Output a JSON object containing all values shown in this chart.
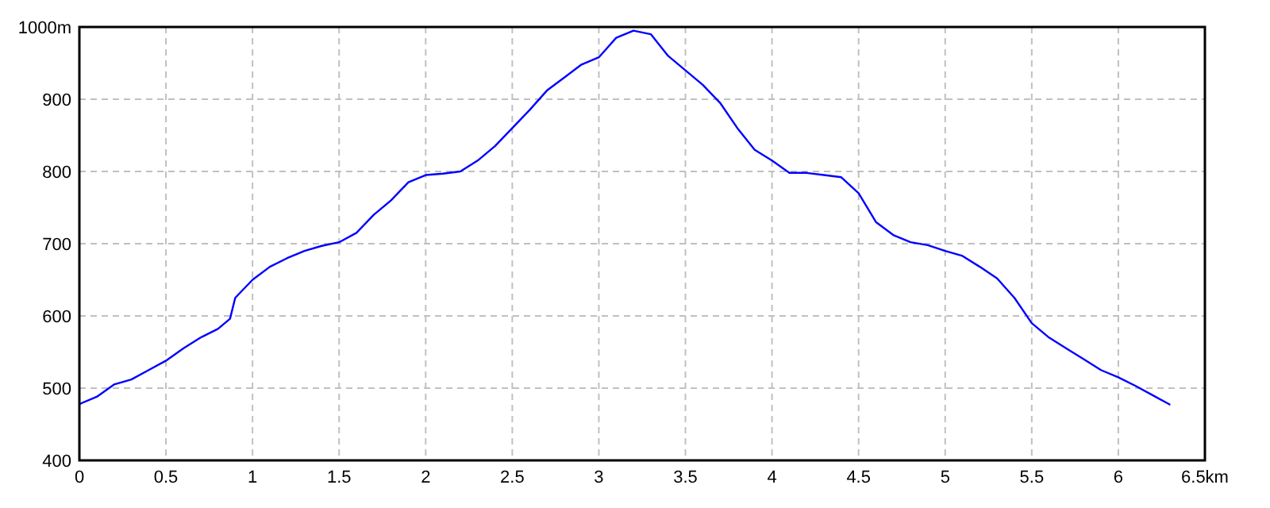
{
  "chart_data": {
    "type": "line",
    "x": [
      0,
      0.1,
      0.2,
      0.3,
      0.4,
      0.5,
      0.6,
      0.7,
      0.8,
      0.87,
      0.9,
      1.0,
      1.1,
      1.2,
      1.3,
      1.4,
      1.5,
      1.6,
      1.7,
      1.8,
      1.9,
      2.0,
      2.1,
      2.2,
      2.3,
      2.4,
      2.5,
      2.6,
      2.7,
      2.8,
      2.9,
      3.0,
      3.1,
      3.2,
      3.3,
      3.4,
      3.5,
      3.6,
      3.7,
      3.8,
      3.9,
      4.0,
      4.1,
      4.2,
      4.3,
      4.4,
      4.5,
      4.6,
      4.7,
      4.8,
      4.9,
      5.0,
      5.1,
      5.2,
      5.3,
      5.4,
      5.5,
      5.6,
      5.7,
      5.8,
      5.9,
      6.0,
      6.1,
      6.2,
      6.3
    ],
    "series": [
      {
        "color": "#0000ff",
        "values": [
          478,
          488,
          505,
          512,
          525,
          538,
          555,
          570,
          582,
          596,
          625,
          650,
          668,
          680,
          690,
          697,
          702,
          715,
          740,
          760,
          785,
          795,
          797,
          800,
          815,
          835,
          860,
          885,
          912,
          930,
          948,
          958,
          985,
          995,
          990,
          960,
          940,
          920,
          895,
          860,
          830,
          815,
          798,
          798,
          795,
          792,
          770,
          730,
          712,
          702,
          698,
          690,
          683,
          668,
          652,
          625,
          590,
          570,
          555,
          540,
          525,
          515,
          503,
          490,
          477
        ]
      }
    ],
    "xlim": [
      0,
      6.5
    ],
    "xticks": [
      0,
      0.5,
      1,
      1.5,
      2,
      2.5,
      3,
      3.5,
      4,
      4.5,
      5,
      5.5,
      6,
      {
        "value": 6.5,
        "label": "6.5km"
      }
    ],
    "ylim": [
      400,
      1000
    ],
    "yticks": [
      400,
      500,
      600,
      700,
      800,
      900,
      {
        "value": 1000,
        "label": "1000m"
      }
    ],
    "grid": true,
    "line_style": "solid",
    "marker": "none"
  }
}
